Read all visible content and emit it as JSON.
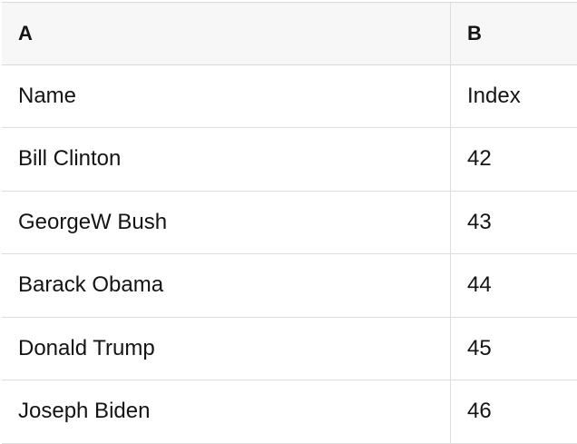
{
  "table": {
    "column_headers": [
      {
        "key": "A",
        "label": "A"
      },
      {
        "key": "B",
        "label": "B"
      }
    ],
    "rows": [
      {
        "a": "Name",
        "b": "Index"
      },
      {
        "a": "Bill Clinton",
        "b": "42"
      },
      {
        "a": "GeorgeW Bush",
        "b": "43"
      },
      {
        "a": "Barack Obama",
        "b": "44"
      },
      {
        "a": "Donald Trump",
        "b": "45"
      },
      {
        "a": "Joseph Biden",
        "b": "46"
      }
    ]
  },
  "colors": {
    "header_bg": "#f7f7f7",
    "row_bg": "#ffffff",
    "grid_border": "#dedede",
    "header_border": "#d8d8d8",
    "text": "#141414"
  }
}
